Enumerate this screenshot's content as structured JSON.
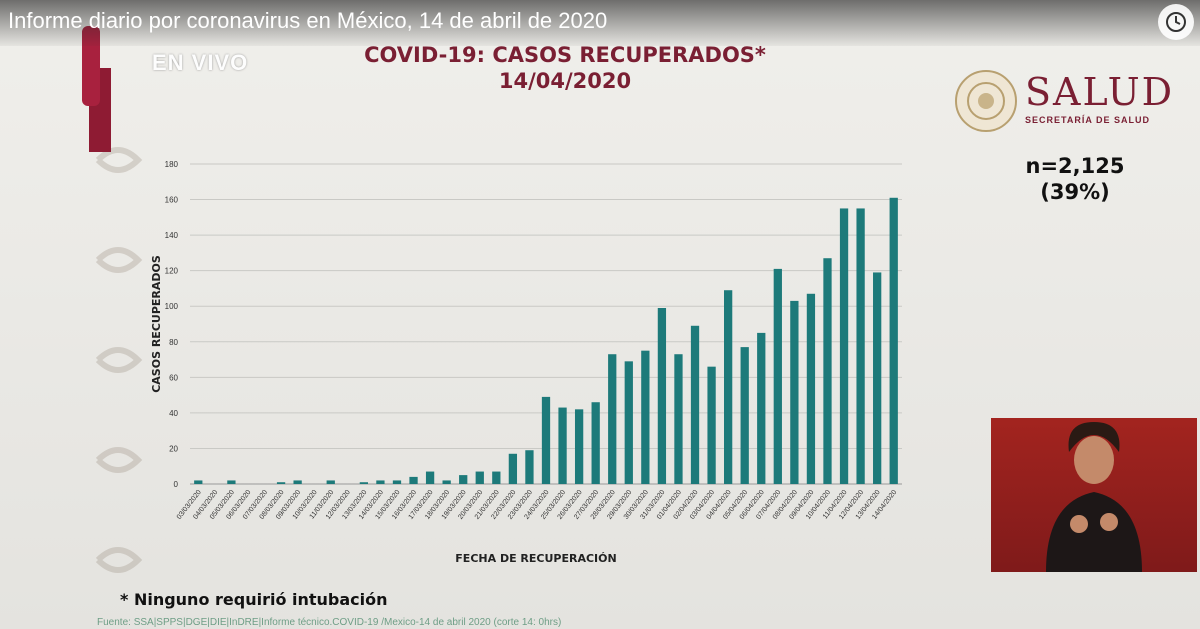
{
  "video": {
    "title": "Informe diario por coronavirus en México, 14 de abril de 2020"
  },
  "overlay": {
    "live_label": "EN VIVO"
  },
  "header": {
    "title_line1": "COVID-19: CASOS RECUPERADOS*",
    "title_line2": "14/04/2020"
  },
  "logo": {
    "name": "SALUD",
    "subtitle": "SECRETARÍA DE SALUD"
  },
  "summary": {
    "n": "n=2,125",
    "pct": "(39%)"
  },
  "footer": {
    "note": "* Ninguno requirió intubación",
    "source": "Fuente: SSA|SPPS|DGE|DIE|InDRE|Informe técnico.COVID-19 /Mexico-14 de abril 2020 (corte 14: 0hrs)"
  },
  "colors": {
    "bar": "#1d7a7a",
    "title": "#7a1f33",
    "sign_panel": "#a3241f"
  },
  "chart_data": {
    "type": "bar",
    "xlabel": "FECHA DE RECUPERACIÓN",
    "ylabel": "CASOS RECUPERADOS",
    "ylim": [
      0,
      180
    ],
    "yticks": [
      0,
      20,
      40,
      60,
      80,
      100,
      120,
      140,
      160,
      180
    ],
    "grid": true,
    "categories": [
      "03/03/2020",
      "04/03/2020",
      "05/03/2020",
      "06/03/2020",
      "07/03/2020",
      "08/03/2020",
      "09/03/2020",
      "10/03/2020",
      "11/03/2020",
      "12/03/2020",
      "13/03/2020",
      "14/03/2020",
      "15/03/2020",
      "16/03/2020",
      "17/03/2020",
      "18/03/2020",
      "19/03/2020",
      "20/03/2020",
      "21/03/2020",
      "22/03/2020",
      "23/03/2020",
      "24/03/2020",
      "25/03/2020",
      "26/03/2020",
      "27/03/2020",
      "28/03/2020",
      "29/03/2020",
      "30/03/2020",
      "31/03/2020",
      "01/04/2020",
      "02/04/2020",
      "03/04/2020",
      "04/04/2020",
      "05/04/2020",
      "06/04/2020",
      "07/04/2020",
      "08/04/2020",
      "09/04/2020",
      "10/04/2020",
      "11/04/2020",
      "12/04/2020",
      "13/04/2020",
      "14/04/2020"
    ],
    "values": [
      2,
      0,
      2,
      0,
      0,
      1,
      2,
      0,
      2,
      0,
      1,
      2,
      2,
      4,
      7,
      2,
      5,
      7,
      7,
      17,
      19,
      49,
      43,
      42,
      46,
      73,
      69,
      75,
      99,
      73,
      89,
      66,
      109,
      77,
      85,
      121,
      103,
      107,
      127,
      155,
      155,
      119,
      161
    ]
  }
}
